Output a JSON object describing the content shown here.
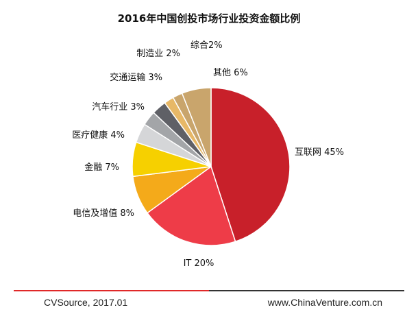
{
  "colors": {
    "red_line": "#e02828",
    "dark_line": "#333333"
  },
  "chart_data": {
    "type": "pie",
    "title": "2016年中国创投市场行业投资金额比例",
    "slices": [
      {
        "label": "互联网 45%",
        "value": 45,
        "color": "#c8202a"
      },
      {
        "label": "IT 20%",
        "value": 20,
        "color": "#ee3c48"
      },
      {
        "label": "电信及增值 8%",
        "value": 8,
        "color": "#f4aa1a"
      },
      {
        "label": "金融 7%",
        "value": 7,
        "color": "#f6d000"
      },
      {
        "label": "医疗健康 4%",
        "value": 4,
        "color": "#d5d6d8"
      },
      {
        "label": "汽车行业 3%",
        "value": 3,
        "color": "#a3a5a8"
      },
      {
        "label": "交通运输 3%",
        "value": 3,
        "color": "#5f6066"
      },
      {
        "label": "制造业 2%",
        "value": 2,
        "color": "#e7b867"
      },
      {
        "label": "综合2%",
        "value": 2,
        "color": "#c9a56c"
      },
      {
        "label": "其他 6%",
        "value": 6,
        "color": "#c9a56c"
      }
    ]
  },
  "footer": {
    "source": "CVSource, 2017.01",
    "website": "www.ChinaVenture.com.cn"
  }
}
